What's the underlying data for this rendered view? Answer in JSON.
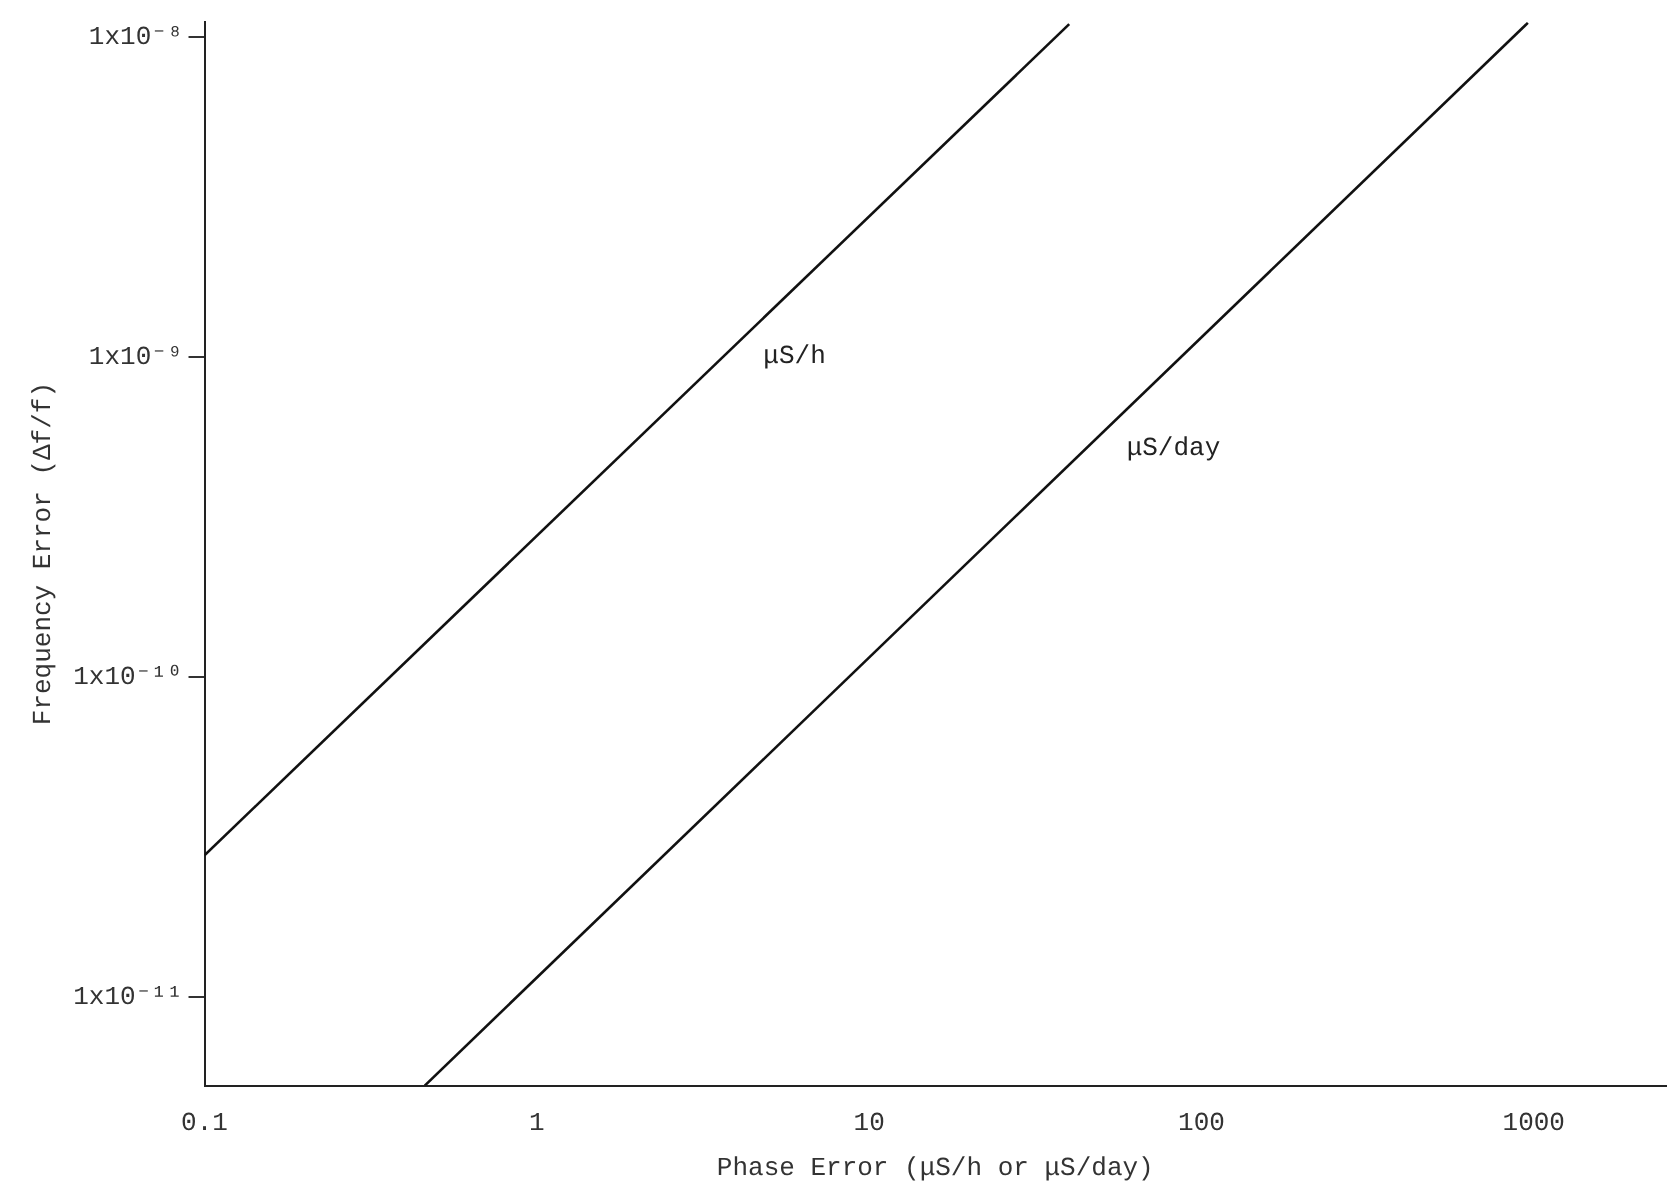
{
  "chart_data": {
    "type": "line",
    "xlabel": "Phase Error (μS/h or μS/day)",
    "ylabel": "Frequency Error (Δf/f)",
    "log": "xy",
    "xlim": [
      0.1,
      2500
    ],
    "ylim": [
      5.3e-12,
      1.12e-08
    ],
    "xticks": [
      0.1,
      1,
      10,
      100,
      1000
    ],
    "yticks": [
      {
        "value": 1e-11,
        "label": "1x10⁻¹¹"
      },
      {
        "value": 1e-10,
        "label": "1x10⁻¹⁰"
      },
      {
        "value": 1e-09,
        "label": "1x10⁻⁹"
      },
      {
        "value": 1e-08,
        "label": "1x10⁻⁸"
      }
    ],
    "marker": "none",
    "line_style": "solid",
    "legend": false,
    "series": [
      {
        "name": "μS/h",
        "color": "#111111",
        "x": [
          0.1,
          40
        ],
        "values": [
          2.78e-11,
          1.1e-08
        ]
      },
      {
        "name": "μS/day",
        "color": "#111111",
        "x": [
          0.46,
          960
        ],
        "values": [
          5.3e-12,
          1.11e-08
        ]
      }
    ]
  }
}
